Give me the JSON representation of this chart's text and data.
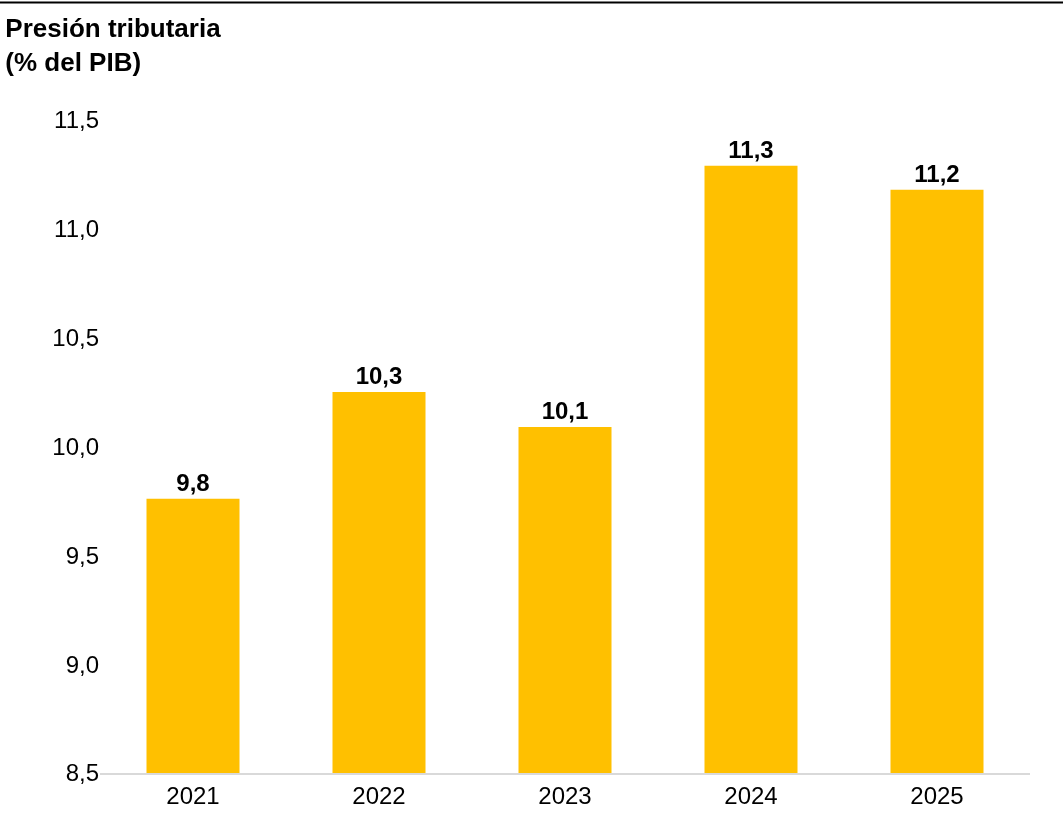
{
  "chart_data": {
    "type": "bar",
    "title": "Presión tributaria\n(% del PIB)",
    "categories": [
      "2021",
      "2022",
      "2023",
      "2024",
      "2025"
    ],
    "values": [
      9.76,
      10.25,
      10.09,
      11.29,
      11.18
    ],
    "value_labels": [
      "9,8",
      "10,3",
      "10,1",
      "11,3",
      "11,2"
    ],
    "color": "#ffc000",
    "ylim": [
      8.5,
      11.5
    ],
    "yticks": [
      {
        "value": 8.5,
        "label": "8,5"
      },
      {
        "value": 9,
        "label": "9,0"
      },
      {
        "value": 9.5,
        "label": "9,5"
      },
      {
        "value": 10,
        "label": "10,0"
      },
      {
        "value": 10.5,
        "label": "10,5"
      },
      {
        "value": 11,
        "label": "11,0"
      },
      {
        "value": 11.5,
        "label": "11,5"
      }
    ],
    "grid": false,
    "legend": false
  }
}
